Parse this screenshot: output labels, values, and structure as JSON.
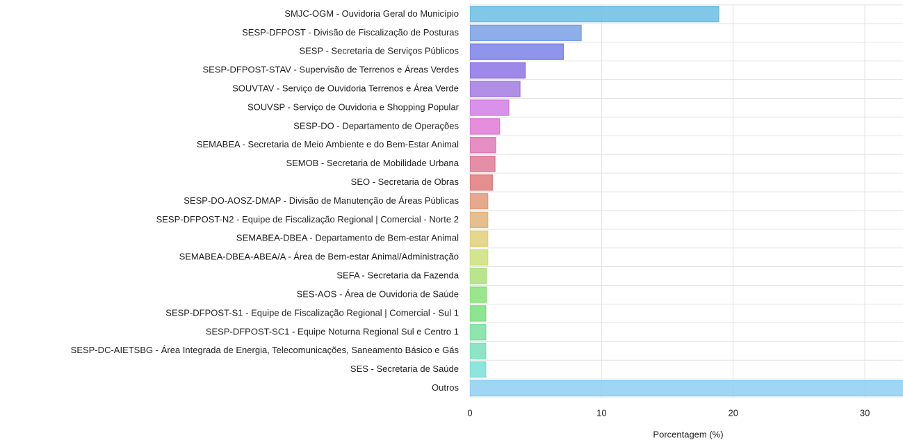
{
  "chart_data": {
    "type": "bar",
    "orientation": "horizontal",
    "x_label": "Porcentagem (%)",
    "categories": [
      "SMJC-OGM - Ouvidoria Geral do Município",
      "SESP-DFPOST - Divisão de Fiscalização de Posturas",
      "SESP - Secretaria de Serviços Públicos",
      "SESP-DFPOST-STAV - Supervisão de Terrenos e Áreas Verdes",
      "SOUVTAV - Serviço de Ouvidoria Terrenos e Área Verde",
      "SOUVSP - Serviço de Ouvidoria e Shopping Popular",
      "SESP-DO - Departamento de Operações",
      "SEMABEA - Secretaria de Meio Ambiente e do Bem-Estar Animal",
      "SEMOB - Secretaria de Mobilidade Urbana",
      "SEO - Secretaria de Obras",
      "SESP-DO-AOSZ-DMAP - Divisão de Manutenção de Áreas Públicas",
      "SESP-DFPOST-N2 - Equipe de Fiscalização Regional | Comercial - Norte 2",
      "SEMABEA-DBEA - Departamento de Bem-estar Animal",
      "SEMABEA-DBEA-ABEA/A - Área de Bem-estar Animal/Administração",
      "SEFA - Secretaria da Fazenda",
      "SES-AOS - Área de Ouvidoria de Saúde",
      "SESP-DFPOST-S1 - Equipe de Fiscalização Regional | Comercial - Sul 1",
      "SESP-DFPOST-SC1 - Equipe Noturna Regional Sul e Centro 1",
      "SESP-DC-AIETSBG - Área Integrada de Energia, Telecomunicações, Saneamento Básico e Gás",
      "SES - Secretaria de Saúde",
      "Outros"
    ],
    "values": [
      18.9,
      8.45,
      7.1,
      4.2,
      3.8,
      2.95,
      2.25,
      1.95,
      1.9,
      1.7,
      1.35,
      1.35,
      1.35,
      1.35,
      1.25,
      1.25,
      1.2,
      1.2,
      1.2,
      1.2,
      35
    ],
    "colors": [
      "#6bbde3",
      "#7aa0e6",
      "#7b83e6",
      "#8c74e6",
      "#a27ae0",
      "#d27ee6",
      "#e07ad6",
      "#e07ab8",
      "#e07a98",
      "#e07a7a",
      "#e09a7a",
      "#e0b47a",
      "#e0d07a",
      "#cce07a",
      "#ace07a",
      "#8ae07a",
      "#7ae07e",
      "#7ae0a0",
      "#7ae0bc",
      "#7ae0d6",
      "#8dcff2"
    ],
    "xlim": [
      0,
      32.9
    ],
    "xticks": [
      0,
      10,
      20,
      30
    ],
    "grid": true
  }
}
